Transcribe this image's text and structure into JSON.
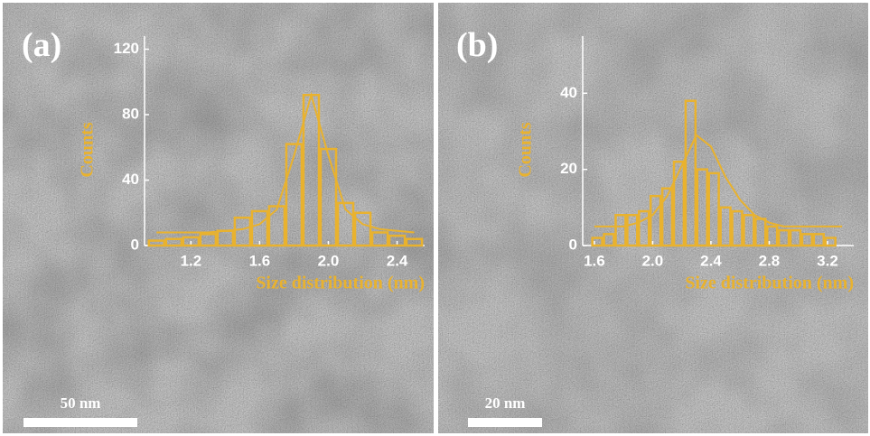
{
  "panels": [
    {
      "label": "(a)",
      "scale_bar": "50 nm"
    },
    {
      "label": "(b)",
      "scale_bar": "20 nm"
    }
  ],
  "chart_data": [
    {
      "type": "histogram",
      "xlabel": "Size distribution (nm)",
      "ylabel": "Counts",
      "color": "#e9b22e",
      "bins": [
        0.95,
        1.05,
        1.15,
        1.25,
        1.35,
        1.45,
        1.55,
        1.65,
        1.75,
        1.85,
        1.95,
        2.05,
        2.15,
        2.25,
        2.35,
        2.45,
        2.55
      ],
      "values": [
        3,
        4,
        5,
        7,
        9,
        17,
        21,
        24,
        62,
        92,
        59,
        26,
        20,
        8,
        6,
        4
      ],
      "fit": {
        "x": [
          1.0,
          1.1,
          1.2,
          1.3,
          1.4,
          1.5,
          1.6,
          1.7,
          1.8,
          1.9,
          2.0,
          2.1,
          2.2,
          2.3,
          2.4,
          2.5
        ],
        "values": [
          8,
          8,
          8,
          8,
          9,
          10,
          13,
          22,
          55,
          92,
          55,
          22,
          13,
          10,
          9,
          8
        ]
      },
      "xlim": [
        0.93,
        2.56
      ],
      "ylim": [
        0,
        128
      ],
      "xticks": [
        1.2,
        1.6,
        {
          "value": 2,
          "label": "2.0"
        },
        2.4
      ],
      "yticks": [
        0,
        40,
        80,
        120
      ]
    },
    {
      "type": "histogram",
      "xlabel": "Size distribution (nm)",
      "ylabel": "Counts",
      "color": "#e9b22e",
      "bins": [
        1.58,
        1.66,
        1.74,
        1.82,
        1.9,
        1.98,
        2.06,
        2.14,
        2.22,
        2.3,
        2.38,
        2.46,
        2.54,
        2.62,
        2.7,
        2.78,
        2.86,
        2.94,
        3.02,
        3.1,
        3.18,
        3.26
      ],
      "values": [
        2,
        3,
        8,
        8,
        9,
        13,
        15,
        22,
        38,
        20,
        19,
        10,
        9,
        8,
        7,
        5,
        4,
        4,
        3,
        3,
        2
      ],
      "fit": {
        "x": [
          1.6,
          1.7,
          1.8,
          1.9,
          2.0,
          2.1,
          2.2,
          2.3,
          2.4,
          2.5,
          2.6,
          2.7,
          2.8,
          2.9,
          3.0,
          3.1,
          3.2,
          3.3
        ],
        "values": [
          5,
          5,
          5,
          6,
          8,
          13,
          21,
          29,
          26,
          18,
          12,
          8,
          6,
          5,
          5,
          5,
          5,
          5
        ]
      },
      "xlim": [
        1.52,
        3.38
      ],
      "ylim": [
        0,
        55
      ],
      "xticks": [
        1.6,
        {
          "value": 2,
          "label": "2.0"
        },
        2.4,
        2.8,
        3.2
      ],
      "yticks": [
        0,
        20,
        40
      ]
    }
  ]
}
